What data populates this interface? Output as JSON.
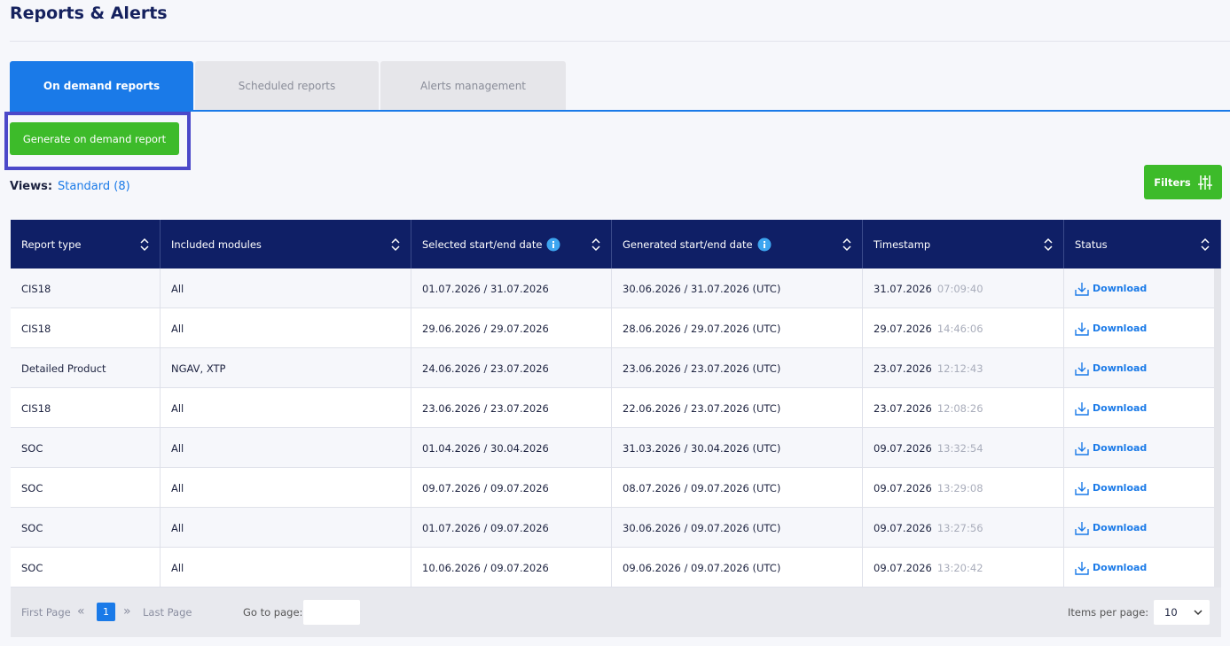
{
  "header": {
    "title": "Reports & Alerts"
  },
  "tabs": [
    "On demand reports",
    "Scheduled reports",
    "Alerts management"
  ],
  "generate_button": "Generate on demand report",
  "views": {
    "label": "Views:",
    "value": "Standard (8)"
  },
  "filters_button": "Filters",
  "table": {
    "columns": [
      "Report type",
      "Included modules",
      "Selected start/end date",
      "Generated start/end date",
      "Timestamp",
      "Status"
    ],
    "rows": [
      [
        "CIS18",
        "All",
        "01.07.2026 / 31.07.2026",
        "30.06.2026 / 31.07.2026 (UTC)",
        "31.07.2026",
        "07:09:40",
        "Download"
      ],
      [
        "CIS18",
        "All",
        "29.06.2026 / 29.07.2026",
        "28.06.2026 / 29.07.2026 (UTC)",
        "29.07.2026",
        "14:46:06",
        "Download"
      ],
      [
        "Detailed Product",
        "NGAV, XTP",
        "24.06.2026 / 23.07.2026",
        "23.06.2026 / 23.07.2026 (UTC)",
        "23.07.2026",
        "12:12:43",
        "Download"
      ],
      [
        "CIS18",
        "All",
        "23.06.2026 / 23.07.2026",
        "22.06.2026 / 23.07.2026 (UTC)",
        "23.07.2026",
        "12:08:26",
        "Download"
      ],
      [
        "SOC",
        "All",
        "01.04.2026 / 30.04.2026",
        "31.03.2026 / 30.04.2026 (UTC)",
        "09.07.2026",
        "13:32:54",
        "Download"
      ],
      [
        "SOC",
        "All",
        "09.07.2026 / 09.07.2026",
        "08.07.2026 / 09.07.2026 (UTC)",
        "09.07.2026",
        "13:29:08",
        "Download"
      ],
      [
        "SOC",
        "All",
        "01.07.2026 / 09.07.2026",
        "30.06.2026 / 09.07.2026 (UTC)",
        "09.07.2026",
        "13:27:56",
        "Download"
      ],
      [
        "SOC",
        "All",
        "10.06.2026 / 09.07.2026",
        "09.06.2026 / 09.07.2026 (UTC)",
        "09.07.2026",
        "13:20:42",
        "Download"
      ]
    ]
  },
  "pagination": {
    "first": "First Page",
    "current": "1",
    "last": "Last Page",
    "goto_label": "Go to page:",
    "items_label": "Items per page:",
    "items_value": "10"
  }
}
